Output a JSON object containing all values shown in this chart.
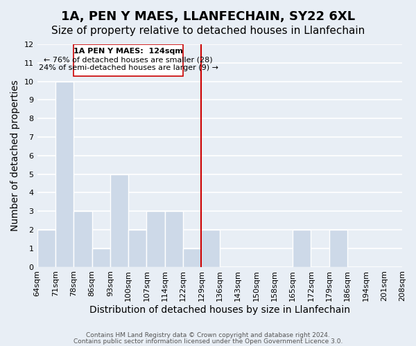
{
  "title": "1A, PEN Y MAES, LLANFECHAIN, SY22 6XL",
  "subtitle": "Size of property relative to detached houses in Llanfechain",
  "xlabel": "Distribution of detached houses by size in Llanfechain",
  "ylabel": "Number of detached properties",
  "footer_line1": "Contains HM Land Registry data © Crown copyright and database right 2024.",
  "footer_line2": "Contains public sector information licensed under the Open Government Licence 3.0.",
  "bin_labels": [
    "64sqm",
    "71sqm",
    "78sqm",
    "86sqm",
    "93sqm",
    "100sqm",
    "107sqm",
    "114sqm",
    "122sqm",
    "129sqm",
    "136sqm",
    "143sqm",
    "150sqm",
    "158sqm",
    "165sqm",
    "172sqm",
    "179sqm",
    "186sqm",
    "194sqm",
    "201sqm",
    "208sqm"
  ],
  "bar_values": [
    2,
    10,
    3,
    1,
    5,
    2,
    3,
    3,
    1,
    2,
    0,
    0,
    0,
    0,
    2,
    0,
    2,
    0,
    0,
    0
  ],
  "bar_color": "#cdd9e8",
  "bar_edge_color": "#ffffff",
  "grid_color": "#ffffff",
  "bg_color": "#e8eef5",
  "ylim": [
    0,
    12
  ],
  "yticks": [
    0,
    1,
    2,
    3,
    4,
    5,
    6,
    7,
    8,
    9,
    10,
    11,
    12
  ],
  "property_line_x": 8,
  "property_line_color": "#cc0000",
  "annotation_title": "1A PEN Y MAES:  124sqm",
  "annotation_line1": "← 76% of detached houses are smaller (28)",
  "annotation_line2": "24% of semi-detached houses are larger (9) →",
  "annotation_box_color": "#ffffff",
  "annotation_box_edge": "#cc0000",
  "title_fontsize": 13,
  "subtitle_fontsize": 11,
  "xlabel_fontsize": 10,
  "ylabel_fontsize": 10,
  "tick_fontsize": 8
}
